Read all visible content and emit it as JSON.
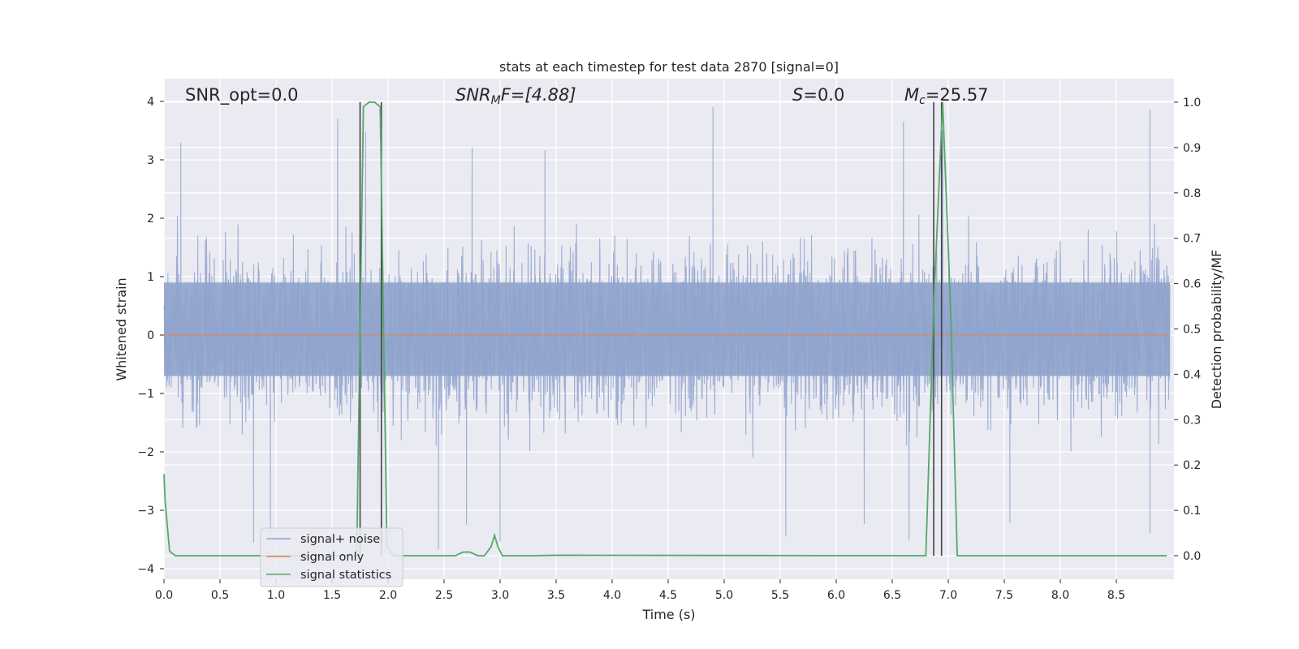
{
  "chart_data": {
    "type": "line",
    "title": "stats at each timestep for test data 2870 [signal=0]",
    "xlabel": "Time (s)",
    "ylabel": "Whitened strain",
    "y2label": "Detection probability/MF",
    "xlim": [
      0.0,
      9.0
    ],
    "ylim": [
      -4.15,
      4.1
    ],
    "y2lim": [
      -0.045,
      1.045
    ],
    "x_ticks": [
      "0.0",
      "0.5",
      "1.0",
      "1.5",
      "2.0",
      "2.5",
      "3.0",
      "3.5",
      "4.0",
      "4.5",
      "5.0",
      "5.5",
      "6.0",
      "6.5",
      "7.0",
      "7.5",
      "8.0",
      "8.5"
    ],
    "y_ticks": [
      "4",
      "3",
      "2",
      "1",
      "0",
      "−1",
      "−2",
      "−3",
      "−4"
    ],
    "y2_ticks": [
      "1.0",
      "0.9",
      "0.8",
      "0.7",
      "0.6",
      "0.5",
      "0.4",
      "0.3",
      "0.2",
      "0.1",
      "0.0"
    ],
    "grid": true,
    "legend_position": "lower-left",
    "annotations": {
      "snr_opt": "SNR_opt=0.0",
      "snr_mf_main": "SNR",
      "snr_mf_sub": "M",
      "snr_mf_rest": "F=[4.88]",
      "s_main": "S",
      "s_rest": "=0.0",
      "mc_main": "M",
      "mc_sub": "c",
      "mc_rest": "=25.57"
    },
    "series": [
      {
        "name": "signal+ noise",
        "color": "#8fa3cc",
        "noise_core_range": [
          -0.7,
          0.9
        ],
        "noise_envelope_range": [
          -1.5,
          1.65
        ],
        "approx_peak_times": [
          0.15,
          1.55,
          1.8,
          2.75,
          3.4,
          4.9,
          6.6,
          6.95,
          8.8
        ],
        "approx_min_times": [
          0.8,
          0.95,
          2.45,
          2.7,
          3.0,
          5.55,
          6.25,
          6.65,
          7.55,
          8.8
        ]
      },
      {
        "name": "signal only",
        "color": "#dd8452",
        "values_constant": 0.0
      },
      {
        "name": "signal statistics",
        "color": "#55a868",
        "axis": "right",
        "x": [
          0.0,
          0.01,
          0.05,
          0.1,
          0.15,
          1.6,
          1.72,
          1.78,
          1.83,
          1.88,
          1.93,
          1.96,
          1.99,
          2.05,
          2.1,
          2.6,
          2.67,
          2.73,
          2.8,
          2.86,
          2.92,
          2.95,
          2.98,
          3.02,
          3.3,
          3.5,
          6.8,
          6.87,
          6.95,
          7.02,
          7.08,
          8.95
        ],
        "y": [
          0.18,
          0.12,
          0.01,
          0.0,
          0.0,
          0.0,
          0.0,
          0.99,
          1.0,
          1.0,
          0.99,
          0.5,
          0.02,
          0.0,
          0.0,
          0.0,
          0.008,
          0.008,
          0.0,
          0.0,
          0.02,
          0.045,
          0.02,
          0.0,
          0.0,
          0.001,
          0.0,
          0.55,
          1.0,
          0.55,
          0.0,
          0.0
        ]
      }
    ],
    "vertical_markers_x": [
      1.75,
      1.94,
      6.87,
      6.94
    ]
  }
}
